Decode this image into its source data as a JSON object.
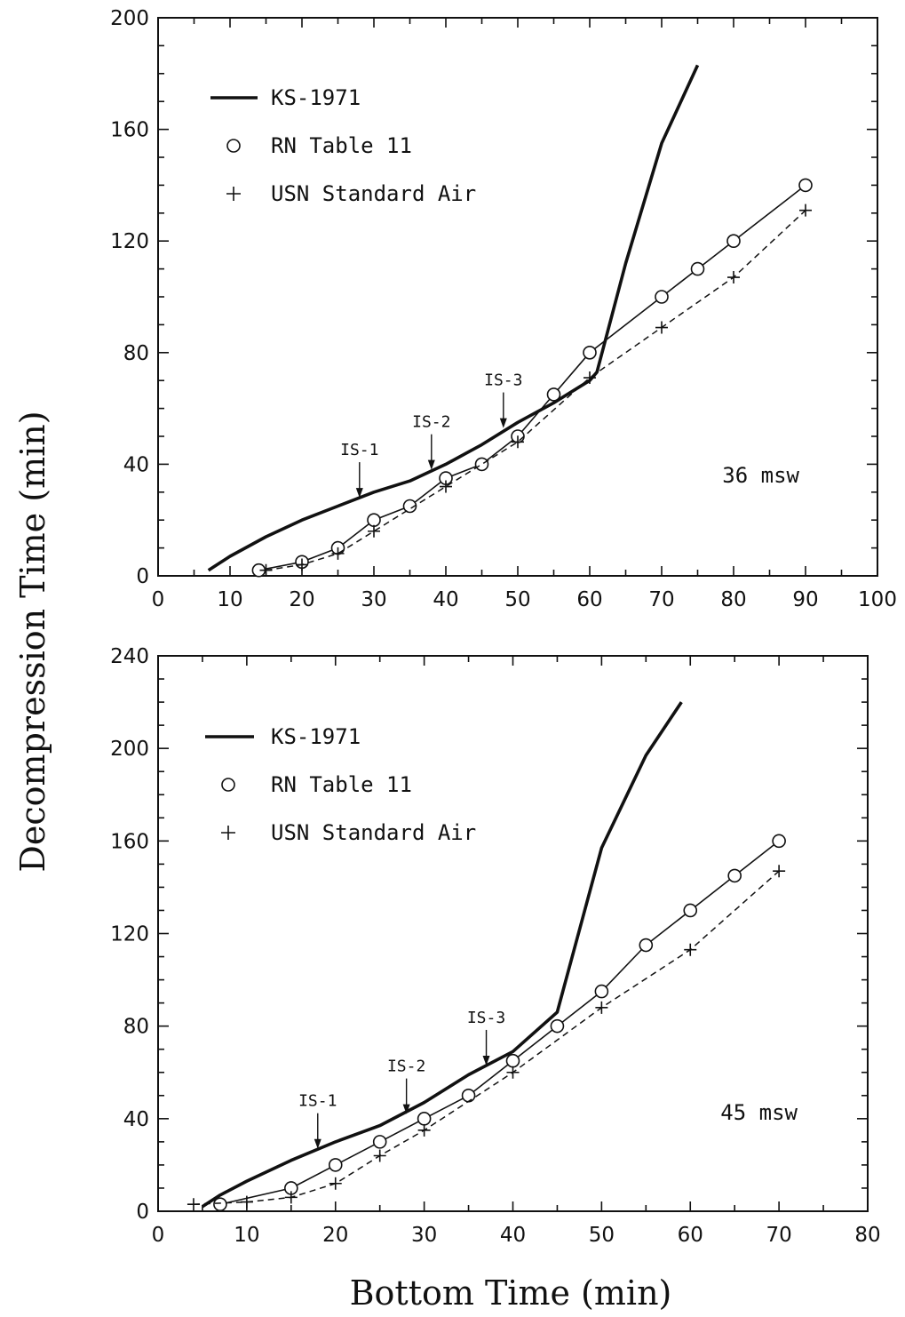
{
  "figure": {
    "xlabel": "Bottom Time (min)",
    "ylabel": "Decompression Time (min)"
  },
  "chart_data": [
    {
      "type": "line",
      "depth_label": "36 msw",
      "xlim": [
        0,
        100
      ],
      "ylim": [
        0,
        200
      ],
      "xticks": [
        0,
        10,
        20,
        30,
        40,
        50,
        60,
        70,
        80,
        90,
        100
      ],
      "yticks": [
        0,
        40,
        80,
        120,
        160,
        200
      ],
      "legend": {
        "placement": "top-left"
      },
      "series": [
        {
          "name": "KS-1971",
          "style": "thick-solid",
          "x": [
            7,
            10,
            15,
            20,
            25,
            30,
            35,
            40,
            45,
            50,
            55,
            60,
            61,
            65,
            70,
            75
          ],
          "y": [
            2,
            7,
            14,
            20,
            25,
            30,
            34,
            40,
            47,
            55,
            62,
            70,
            73,
            112,
            155,
            183
          ]
        },
        {
          "name": "RN Table 11",
          "style": "thin-solid-circle",
          "x": [
            14,
            20,
            25,
            30,
            35,
            40,
            45,
            50,
            55,
            60,
            70,
            75,
            80,
            90
          ],
          "y": [
            2,
            5,
            10,
            20,
            25,
            35,
            40,
            50,
            65,
            80,
            100,
            110,
            120,
            140
          ]
        },
        {
          "name": "USN Standard Air",
          "style": "dashed-plus",
          "x": [
            15,
            20,
            25,
            30,
            40,
            50,
            60,
            70,
            80,
            90
          ],
          "y": [
            2,
            4,
            8,
            16,
            32,
            48,
            71,
            89,
            107,
            131
          ]
        }
      ],
      "annotations": [
        {
          "text": "IS-1",
          "x": 28,
          "y": 28
        },
        {
          "text": "IS-2",
          "x": 38,
          "y": 38
        },
        {
          "text": "IS-3",
          "x": 48,
          "y": 53
        }
      ]
    },
    {
      "type": "line",
      "depth_label": "45 msw",
      "xlim": [
        0,
        80
      ],
      "ylim": [
        0,
        240
      ],
      "xticks": [
        0,
        10,
        20,
        30,
        40,
        50,
        60,
        70,
        80
      ],
      "yticks": [
        0,
        40,
        80,
        120,
        160,
        200,
        240
      ],
      "legend": {
        "placement": "top-left"
      },
      "series": [
        {
          "name": "KS-1971",
          "style": "thick-solid",
          "x": [
            5,
            7,
            10,
            15,
            20,
            25,
            30,
            35,
            40,
            45,
            50,
            55,
            59
          ],
          "y": [
            2,
            7,
            13,
            22,
            30,
            37,
            47,
            59,
            69,
            86,
            157,
            197,
            220
          ]
        },
        {
          "name": "RN Table 11",
          "style": "thin-solid-circle",
          "x": [
            7,
            15,
            20,
            25,
            30,
            35,
            40,
            45,
            50,
            55,
            60,
            65,
            70
          ],
          "y": [
            3,
            10,
            20,
            30,
            40,
            50,
            65,
            80,
            95,
            115,
            130,
            145,
            160
          ]
        },
        {
          "name": "USN Standard Air",
          "style": "dashed-plus",
          "x": [
            4,
            10,
            15,
            20,
            25,
            30,
            40,
            50,
            60,
            70
          ],
          "y": [
            3,
            4,
            6,
            12,
            24,
            35,
            60,
            88,
            113,
            147
          ]
        }
      ],
      "annotations": [
        {
          "text": "IS-1",
          "x": 18,
          "y": 27
        },
        {
          "text": "IS-2",
          "x": 28,
          "y": 42
        },
        {
          "text": "IS-3",
          "x": 37,
          "y": 63
        }
      ]
    }
  ]
}
